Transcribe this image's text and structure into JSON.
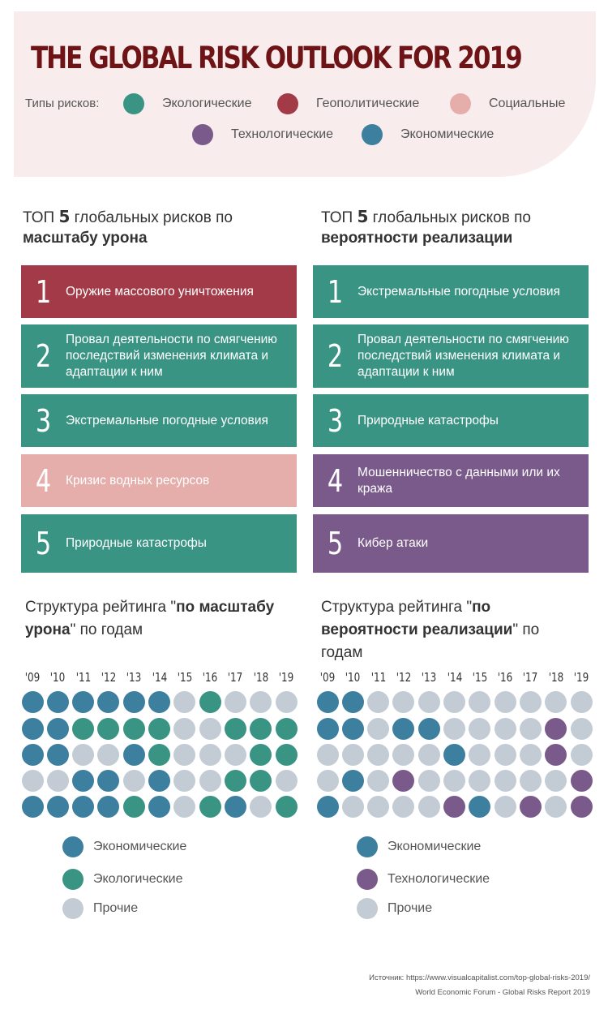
{
  "title": "THE GLOBAL RISK OUTLOOK FOR 2019",
  "legend": {
    "label": "Типы рисков:",
    "items": [
      {
        "name": "Экологические",
        "color": "#3a9484"
      },
      {
        "name": "Геополитические",
        "color": "#a23b47"
      },
      {
        "name": "Социальные",
        "color": "#e6aeaa"
      },
      {
        "name": "Технологические",
        "color": "#7a5a8a"
      },
      {
        "name": "Экономические",
        "color": "#3d7f9e"
      }
    ]
  },
  "left": {
    "heading": {
      "pre": "ТОП ",
      "num": "5",
      "mid": " глобальных рисков по",
      "bold": "масштабу урона"
    },
    "ranks": [
      {
        "num": "1",
        "text": "Оружие массового уничтожения",
        "color": "#a23b47"
      },
      {
        "num": "2",
        "text": "Провал деятельности по смягчению последствий изменения климата и адаптации к ним",
        "color": "#3a9484"
      },
      {
        "num": "3",
        "text": "Экстремальные погодные условия",
        "color": "#3a9484"
      },
      {
        "num": "4",
        "text": "Кризис водных ресурсов",
        "color": "#e6aeaa"
      },
      {
        "num": "5",
        "text": "Природные катастрофы",
        "color": "#3a9484"
      }
    ],
    "structure": {
      "pre": "Структура рейтинга \"",
      "bold": "по масштабу урона",
      "post": "\" по годам"
    },
    "bottom_legend": [
      {
        "name": "Экономические",
        "color": "#3d7f9e"
      },
      {
        "name": "Экологические",
        "color": "#3a9484"
      },
      {
        "name": "Прочие",
        "color": "#c3ccd4"
      }
    ]
  },
  "right": {
    "heading": {
      "pre": "ТОП ",
      "num": "5",
      "mid": " глобальных рисков по",
      "bold": "вероятности реализации"
    },
    "ranks": [
      {
        "num": "1",
        "text": "Экстремальные погодные условия",
        "color": "#3a9484"
      },
      {
        "num": "2",
        "text": "Провал деятельности по смягчению последствий изменения климата и адаптации к ним",
        "color": "#3a9484"
      },
      {
        "num": "3",
        "text": "Природные катастрофы",
        "color": "#3a9484"
      },
      {
        "num": "4",
        "text": "Мошенничество с данными или их кража",
        "color": "#7a5a8a"
      },
      {
        "num": "5",
        "text": "Кибер атаки",
        "color": "#7a5a8a"
      }
    ],
    "structure": {
      "pre": "Структура рейтинга \"",
      "bold": "по вероятности реализации",
      "post": "\" по годам"
    },
    "bottom_legend": [
      {
        "name": "Экономические",
        "color": "#3d7f9e"
      },
      {
        "name": "Технологические",
        "color": "#7a5a8a"
      },
      {
        "name": "Прочие",
        "color": "#c3ccd4"
      }
    ]
  },
  "years": [
    "'09",
    "'10",
    "'11",
    "'12",
    "'13",
    "'14",
    "'15",
    "'16",
    "'17",
    "'18",
    "'19"
  ],
  "dot_colors": {
    "E": "#3d7f9e",
    "G": "#3a9484",
    "T": "#7a5a8a",
    "O": "#c3ccd4"
  },
  "left_grid": [
    [
      "E",
      "E",
      "E",
      "E",
      "E",
      "E",
      "O",
      "G",
      "O",
      "O",
      "O"
    ],
    [
      "E",
      "E",
      "G",
      "G",
      "G",
      "G",
      "O",
      "O",
      "G",
      "G",
      "G"
    ],
    [
      "E",
      "E",
      "O",
      "O",
      "E",
      "G",
      "O",
      "O",
      "O",
      "G",
      "G"
    ],
    [
      "O",
      "O",
      "E",
      "E",
      "O",
      "E",
      "O",
      "O",
      "G",
      "G",
      "O"
    ],
    [
      "E",
      "E",
      "E",
      "E",
      "G",
      "E",
      "O",
      "G",
      "E",
      "O",
      "G"
    ]
  ],
  "right_grid": [
    [
      "E",
      "E",
      "O",
      "O",
      "O",
      "O",
      "O",
      "O",
      "O",
      "O",
      "O"
    ],
    [
      "E",
      "E",
      "O",
      "E",
      "E",
      "O",
      "O",
      "O",
      "O",
      "T",
      "O"
    ],
    [
      "O",
      "O",
      "O",
      "O",
      "O",
      "E",
      "O",
      "O",
      "O",
      "T",
      "O"
    ],
    [
      "O",
      "E",
      "O",
      "T",
      "O",
      "O",
      "O",
      "O",
      "O",
      "O",
      "T"
    ],
    [
      "E",
      "O",
      "O",
      "O",
      "O",
      "T",
      "E",
      "O",
      "T",
      "O",
      "T"
    ]
  ],
  "source": {
    "line1": "Источник: https://www.visualcapitalist.com/top-global-risks-2019/",
    "line2": "World Economic Forum - Global Risks Report 2019"
  }
}
